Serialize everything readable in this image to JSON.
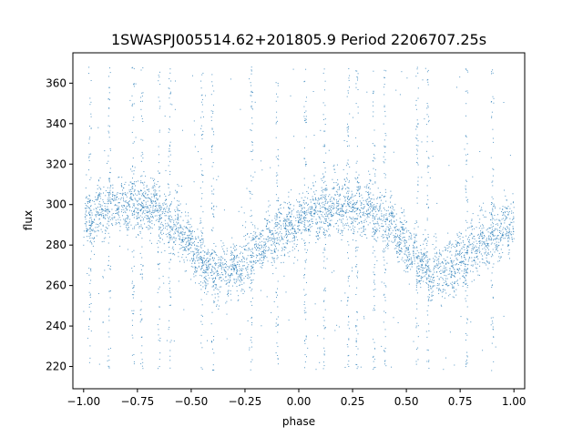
{
  "chart_data": {
    "type": "scatter",
    "title": "1SWASPJ005514.62+201805.9 Period 2206707.25s",
    "xlabel": "phase",
    "ylabel": "flux",
    "xlim": [
      -1.05,
      1.05
    ],
    "ylim": [
      209,
      375
    ],
    "x_ticks": [
      -1.0,
      -0.75,
      -0.5,
      -0.25,
      0.0,
      0.25,
      0.5,
      0.75,
      1.0
    ],
    "x_tick_labels": [
      "−1.00",
      "−0.75",
      "−0.50",
      "−0.25",
      "0.00",
      "0.25",
      "0.50",
      "0.75",
      "1.00"
    ],
    "y_ticks": [
      220,
      240,
      260,
      280,
      300,
      320,
      340,
      360
    ],
    "y_tick_labels": [
      "220",
      "240",
      "260",
      "280",
      "300",
      "320",
      "340",
      "360"
    ],
    "grid": false,
    "legend": "none",
    "marker_color": "#1f77b4",
    "trend": {
      "phase": [
        0.0,
        0.05,
        0.1,
        0.15,
        0.2,
        0.25,
        0.3,
        0.35,
        0.4,
        0.45,
        0.5,
        0.55,
        0.6,
        0.65,
        0.7,
        0.75,
        0.8,
        0.85,
        0.9,
        0.95,
        1.0
      ],
      "flux": [
        290,
        294,
        297,
        299,
        300,
        300,
        299,
        296,
        292,
        287,
        280,
        273,
        268,
        266,
        268,
        272,
        277,
        282,
        286,
        288,
        292
      ]
    },
    "scatter_halfwidth": 12,
    "outlier_range": [
      218,
      368
    ]
  }
}
